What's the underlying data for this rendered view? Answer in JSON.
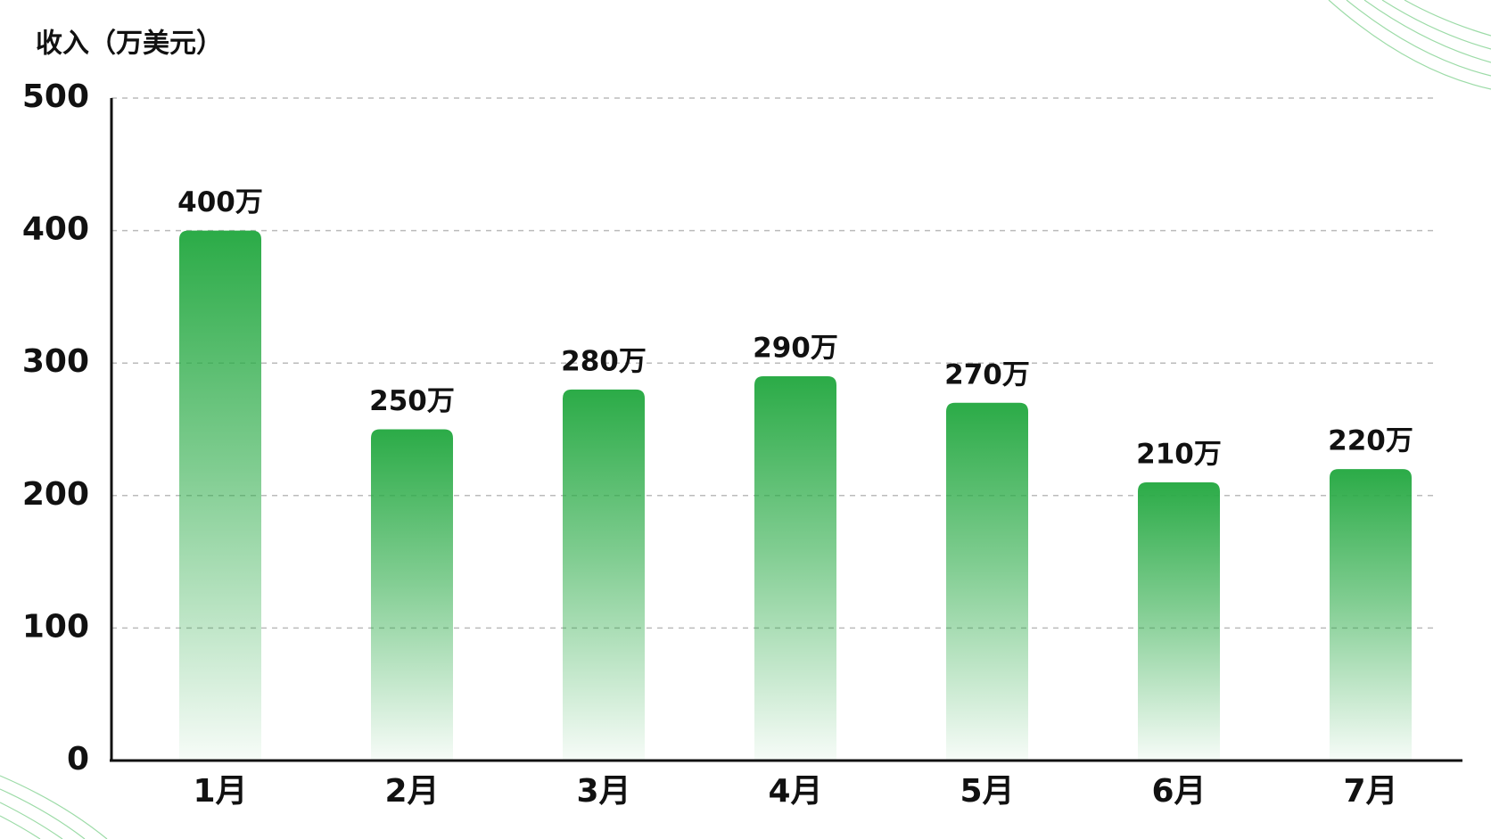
{
  "chart_data": {
    "type": "bar",
    "title": "收入（万美元）",
    "categories": [
      "1月",
      "2月",
      "3月",
      "4月",
      "5月",
      "6月",
      "7月"
    ],
    "values": [
      400,
      250,
      280,
      290,
      270,
      210,
      220
    ],
    "value_labels": [
      "400万",
      "250万",
      "280万",
      "290万",
      "270万",
      "210万",
      "220万"
    ],
    "color": "#2bab47",
    "ylim": [
      0,
      500
    ],
    "yticks": [
      0,
      100,
      200,
      300,
      400,
      500
    ],
    "grid": true
  }
}
